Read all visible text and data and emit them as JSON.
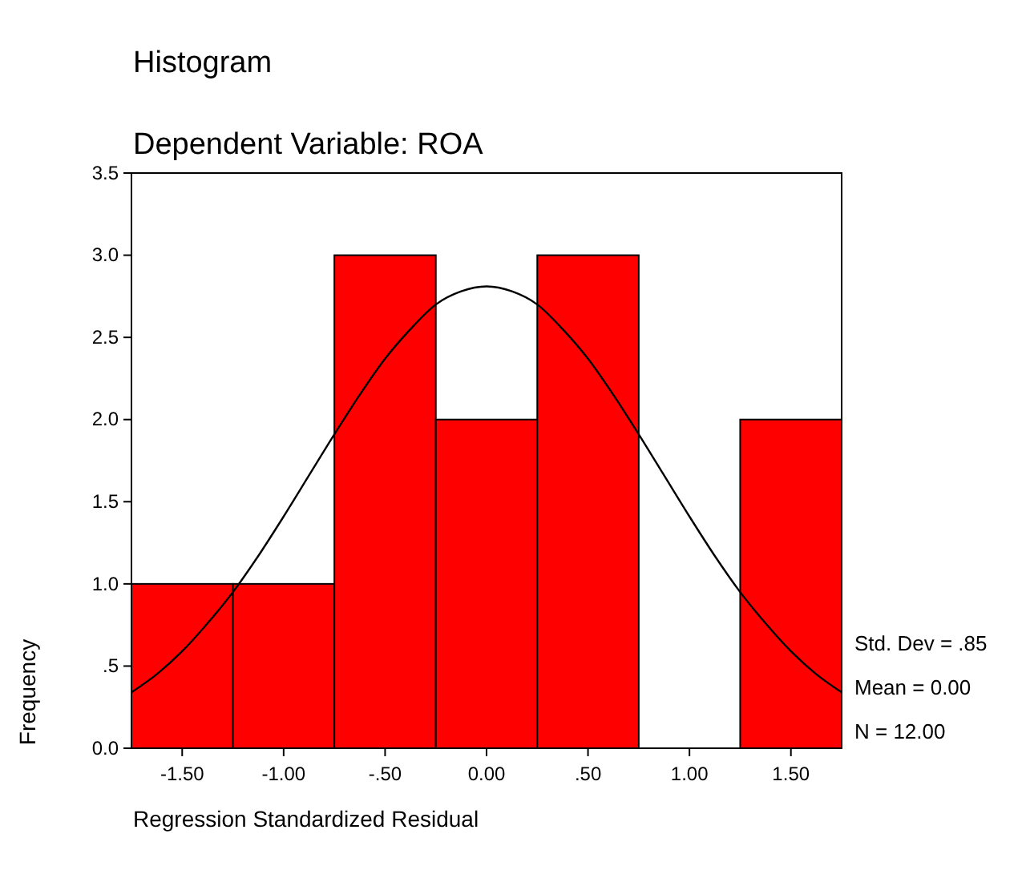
{
  "chart_data": {
    "type": "histogram",
    "title": "Histogram",
    "subtitle": "Dependent Variable: ROA",
    "xlabel": "Regression Standardized Residual",
    "ylabel": "Frequency",
    "bins": [
      -1.75,
      -1.25,
      -0.75,
      -0.25,
      0.25,
      0.75,
      1.25,
      1.75
    ],
    "values": [
      1,
      1,
      3,
      2,
      3,
      0,
      2
    ],
    "color": "#ff0000",
    "series": [
      {
        "type": "line",
        "color": "#000000",
        "x": [
          -1.75,
          -1.625,
          -1.5,
          -1.375,
          -1.25,
          -1.125,
          -1,
          -0.875,
          -0.75,
          -0.625,
          -0.5,
          -0.375,
          -0.25,
          -0.125,
          0,
          0.125,
          0.25,
          0.375,
          0.5,
          0.625,
          0.75,
          0.875,
          1,
          1.125,
          1.25,
          1.375,
          1.5,
          1.625,
          1.75
        ],
        "values": [
          0.34,
          0.45,
          0.59,
          0.76,
          0.95,
          1.17,
          1.41,
          1.66,
          1.91,
          2.15,
          2.37,
          2.55,
          2.7,
          2.78,
          2.81,
          2.78,
          2.7,
          2.55,
          2.37,
          2.15,
          1.91,
          1.66,
          1.41,
          1.17,
          0.95,
          0.76,
          0.59,
          0.45,
          0.34
        ]
      }
    ],
    "xlim": [
      -1.75,
      1.75
    ],
    "xticks": [
      {
        "value": -1.5,
        "label": "-1.50"
      },
      {
        "value": -1,
        "label": "-1.00"
      },
      {
        "value": -0.5,
        "label": "-.50"
      },
      {
        "value": 0,
        "label": "0.00"
      },
      {
        "value": 0.5,
        "label": ".50"
      },
      {
        "value": 1,
        "label": "1.00"
      },
      {
        "value": 1.5,
        "label": "1.50"
      }
    ],
    "ylim": [
      0,
      3.5
    ],
    "yticks": [
      {
        "value": 0,
        "label": "0.0"
      },
      {
        "value": 0.5,
        "label": ".5"
      },
      {
        "value": 1,
        "label": "1.0"
      },
      {
        "value": 1.5,
        "label": "1.5"
      },
      {
        "value": 2,
        "label": "2.0"
      },
      {
        "value": 2.5,
        "label": "2.5"
      },
      {
        "value": 3,
        "label": "3.0"
      },
      {
        "value": 3.5,
        "label": "3.5"
      }
    ],
    "annotations": [
      "Std. Dev = .85",
      "Mean = 0.00",
      "N = 12.00"
    ]
  }
}
